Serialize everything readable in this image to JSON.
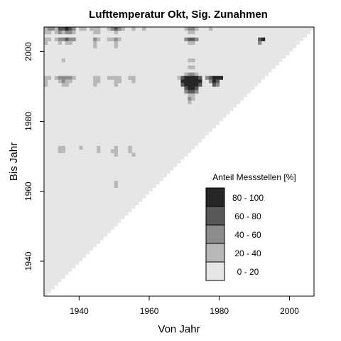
{
  "chart_data": {
    "type": "heatmap",
    "title": "Lufttemperatur Okt, Sig. Zunahmen",
    "xlabel": "Von Jahr",
    "ylabel": "Bis Jahr",
    "xlim": [
      1930,
      2007
    ],
    "ylim": [
      1930,
      2007
    ],
    "x_ticks": [
      1940,
      1960,
      1980,
      2000
    ],
    "y_ticks": [
      1940,
      1960,
      1980,
      2000
    ],
    "grid": false,
    "legend": {
      "title": "Anteil Messstellen [%]",
      "placement": "bottom-right",
      "entries": [
        {
          "label": "80 - 100",
          "color": "#262626"
        },
        {
          "label": "60 -  80",
          "color": "#595959"
        },
        {
          "label": "40 -  60",
          "color": "#8c8c8c"
        },
        {
          "label": "20 -  40",
          "color": "#b8b8b8"
        },
        {
          "label": "0 -  20",
          "color": "#e6e6e6"
        }
      ]
    },
    "background_color": "#e6e6e6",
    "cells": [
      {
        "x": 1930,
        "y": 2006,
        "v": 30
      },
      {
        "x": 1931,
        "y": 2006,
        "v": 50
      },
      {
        "x": 1932,
        "y": 2006,
        "v": 50
      },
      {
        "x": 1933,
        "y": 2006,
        "v": 30
      },
      {
        "x": 1934,
        "y": 2006,
        "v": 70
      },
      {
        "x": 1935,
        "y": 2006,
        "v": 70
      },
      {
        "x": 1936,
        "y": 2006,
        "v": 90
      },
      {
        "x": 1937,
        "y": 2006,
        "v": 70
      },
      {
        "x": 1938,
        "y": 2006,
        "v": 50
      },
      {
        "x": 1940,
        "y": 2006,
        "v": 30
      },
      {
        "x": 1941,
        "y": 2006,
        "v": 30
      },
      {
        "x": 1943,
        "y": 2006,
        "v": 30
      },
      {
        "x": 1944,
        "y": 2006,
        "v": 30
      },
      {
        "x": 1945,
        "y": 2006,
        "v": 30
      },
      {
        "x": 1948,
        "y": 2006,
        "v": 30
      },
      {
        "x": 1949,
        "y": 2006,
        "v": 50
      },
      {
        "x": 1950,
        "y": 2006,
        "v": 70
      },
      {
        "x": 1951,
        "y": 2006,
        "v": 50
      },
      {
        "x": 1952,
        "y": 2006,
        "v": 30
      },
      {
        "x": 1955,
        "y": 2006,
        "v": 30
      },
      {
        "x": 1958,
        "y": 2006,
        "v": 30
      },
      {
        "x": 1970,
        "y": 2006,
        "v": 30
      },
      {
        "x": 1971,
        "y": 2006,
        "v": 50
      },
      {
        "x": 1972,
        "y": 2006,
        "v": 50
      },
      {
        "x": 1973,
        "y": 2006,
        "v": 30
      },
      {
        "x": 1977,
        "y": 2006,
        "v": 30
      },
      {
        "x": 1930,
        "y": 2005,
        "v": 30
      },
      {
        "x": 1931,
        "y": 2005,
        "v": 30
      },
      {
        "x": 1933,
        "y": 2005,
        "v": 30
      },
      {
        "x": 1934,
        "y": 2005,
        "v": 50
      },
      {
        "x": 1935,
        "y": 2005,
        "v": 30
      },
      {
        "x": 1936,
        "y": 2005,
        "v": 50
      },
      {
        "x": 1937,
        "y": 2005,
        "v": 50
      },
      {
        "x": 1938,
        "y": 2005,
        "v": 30
      },
      {
        "x": 1944,
        "y": 2005,
        "v": 30
      },
      {
        "x": 1945,
        "y": 2005,
        "v": 30
      },
      {
        "x": 1950,
        "y": 2005,
        "v": 30
      },
      {
        "x": 1971,
        "y": 2005,
        "v": 30
      },
      {
        "x": 1972,
        "y": 2005,
        "v": 30
      },
      {
        "x": 1930,
        "y": 2003,
        "v": 30
      },
      {
        "x": 1931,
        "y": 2003,
        "v": 30
      },
      {
        "x": 1933,
        "y": 2003,
        "v": 30
      },
      {
        "x": 1934,
        "y": 2003,
        "v": 50
      },
      {
        "x": 1935,
        "y": 2003,
        "v": 50
      },
      {
        "x": 1936,
        "y": 2003,
        "v": 70
      },
      {
        "x": 1937,
        "y": 2003,
        "v": 50
      },
      {
        "x": 1938,
        "y": 2003,
        "v": 50
      },
      {
        "x": 1944,
        "y": 2003,
        "v": 50
      },
      {
        "x": 1945,
        "y": 2003,
        "v": 30
      },
      {
        "x": 1948,
        "y": 2003,
        "v": 30
      },
      {
        "x": 1949,
        "y": 2003,
        "v": 30
      },
      {
        "x": 1950,
        "y": 2003,
        "v": 50
      },
      {
        "x": 1951,
        "y": 2003,
        "v": 30
      },
      {
        "x": 1970,
        "y": 2003,
        "v": 50
      },
      {
        "x": 1971,
        "y": 2003,
        "v": 70
      },
      {
        "x": 1972,
        "y": 2003,
        "v": 70
      },
      {
        "x": 1973,
        "y": 2003,
        "v": 50
      },
      {
        "x": 1991,
        "y": 2003,
        "v": 70
      },
      {
        "x": 1992,
        "y": 2003,
        "v": 90
      },
      {
        "x": 1930,
        "y": 2002,
        "v": 30
      },
      {
        "x": 1934,
        "y": 2002,
        "v": 30
      },
      {
        "x": 1936,
        "y": 2002,
        "v": 30
      },
      {
        "x": 1937,
        "y": 2002,
        "v": 30
      },
      {
        "x": 1944,
        "y": 2002,
        "v": 30
      },
      {
        "x": 1950,
        "y": 2002,
        "v": 30
      },
      {
        "x": 1971,
        "y": 2002,
        "v": 30
      },
      {
        "x": 1972,
        "y": 2002,
        "v": 30
      },
      {
        "x": 1991,
        "y": 2002,
        "v": 50
      },
      {
        "x": 1944,
        "y": 2001,
        "v": 30
      },
      {
        "x": 1950,
        "y": 2001,
        "v": 30
      },
      {
        "x": 1935,
        "y": 1997,
        "v": 30
      },
      {
        "x": 1971,
        "y": 1997,
        "v": 30
      },
      {
        "x": 1972,
        "y": 1997,
        "v": 30
      },
      {
        "x": 1971,
        "y": 1995,
        "v": 30
      },
      {
        "x": 1972,
        "y": 1995,
        "v": 30
      },
      {
        "x": 1970,
        "y": 1993,
        "v": 30
      },
      {
        "x": 1971,
        "y": 1993,
        "v": 50
      },
      {
        "x": 1972,
        "y": 1993,
        "v": 50
      },
      {
        "x": 1973,
        "y": 1993,
        "v": 30
      },
      {
        "x": 1930,
        "y": 1992,
        "v": 30
      },
      {
        "x": 1931,
        "y": 1992,
        "v": 30
      },
      {
        "x": 1933,
        "y": 1992,
        "v": 30
      },
      {
        "x": 1934,
        "y": 1992,
        "v": 50
      },
      {
        "x": 1935,
        "y": 1992,
        "v": 50
      },
      {
        "x": 1936,
        "y": 1992,
        "v": 50
      },
      {
        "x": 1937,
        "y": 1992,
        "v": 50
      },
      {
        "x": 1938,
        "y": 1992,
        "v": 30
      },
      {
        "x": 1944,
        "y": 1992,
        "v": 30
      },
      {
        "x": 1945,
        "y": 1992,
        "v": 30
      },
      {
        "x": 1948,
        "y": 1992,
        "v": 30
      },
      {
        "x": 1949,
        "y": 1992,
        "v": 30
      },
      {
        "x": 1950,
        "y": 1992,
        "v": 30
      },
      {
        "x": 1951,
        "y": 1992,
        "v": 30
      },
      {
        "x": 1954,
        "y": 1992,
        "v": 30
      },
      {
        "x": 1955,
        "y": 1992,
        "v": 30
      },
      {
        "x": 1968,
        "y": 1992,
        "v": 30
      },
      {
        "x": 1969,
        "y": 1992,
        "v": 70
      },
      {
        "x": 1970,
        "y": 1992,
        "v": 90
      },
      {
        "x": 1971,
        "y": 1992,
        "v": 90
      },
      {
        "x": 1972,
        "y": 1992,
        "v": 90
      },
      {
        "x": 1973,
        "y": 1992,
        "v": 90
      },
      {
        "x": 1974,
        "y": 1992,
        "v": 70
      },
      {
        "x": 1976,
        "y": 1992,
        "v": 50
      },
      {
        "x": 1977,
        "y": 1992,
        "v": 70
      },
      {
        "x": 1978,
        "y": 1992,
        "v": 90
      },
      {
        "x": 1979,
        "y": 1992,
        "v": 90
      },
      {
        "x": 1980,
        "y": 1992,
        "v": 90
      },
      {
        "x": 1930,
        "y": 1991,
        "v": 30
      },
      {
        "x": 1934,
        "y": 1991,
        "v": 30
      },
      {
        "x": 1935,
        "y": 1991,
        "v": 50
      },
      {
        "x": 1936,
        "y": 1991,
        "v": 30
      },
      {
        "x": 1937,
        "y": 1991,
        "v": 30
      },
      {
        "x": 1944,
        "y": 1991,
        "v": 30
      },
      {
        "x": 1945,
        "y": 1991,
        "v": 30
      },
      {
        "x": 1950,
        "y": 1991,
        "v": 30
      },
      {
        "x": 1951,
        "y": 1991,
        "v": 30
      },
      {
        "x": 1955,
        "y": 1991,
        "v": 30
      },
      {
        "x": 1969,
        "y": 1991,
        "v": 90
      },
      {
        "x": 1970,
        "y": 1991,
        "v": 90
      },
      {
        "x": 1971,
        "y": 1991,
        "v": 90
      },
      {
        "x": 1972,
        "y": 1991,
        "v": 90
      },
      {
        "x": 1973,
        "y": 1991,
        "v": 90
      },
      {
        "x": 1974,
        "y": 1991,
        "v": 90
      },
      {
        "x": 1977,
        "y": 1991,
        "v": 50
      },
      {
        "x": 1978,
        "y": 1991,
        "v": 90
      },
      {
        "x": 1979,
        "y": 1991,
        "v": 70
      },
      {
        "x": 1930,
        "y": 1990,
        "v": 30
      },
      {
        "x": 1935,
        "y": 1990,
        "v": 30
      },
      {
        "x": 1936,
        "y": 1990,
        "v": 30
      },
      {
        "x": 1944,
        "y": 1990,
        "v": 30
      },
      {
        "x": 1950,
        "y": 1990,
        "v": 30
      },
      {
        "x": 1969,
        "y": 1990,
        "v": 70
      },
      {
        "x": 1970,
        "y": 1990,
        "v": 90
      },
      {
        "x": 1971,
        "y": 1990,
        "v": 90
      },
      {
        "x": 1972,
        "y": 1990,
        "v": 90
      },
      {
        "x": 1973,
        "y": 1990,
        "v": 90
      },
      {
        "x": 1974,
        "y": 1990,
        "v": 70
      },
      {
        "x": 1978,
        "y": 1990,
        "v": 70
      },
      {
        "x": 1979,
        "y": 1990,
        "v": 50
      },
      {
        "x": 1970,
        "y": 1989,
        "v": 70
      },
      {
        "x": 1971,
        "y": 1989,
        "v": 90
      },
      {
        "x": 1972,
        "y": 1989,
        "v": 90
      },
      {
        "x": 1973,
        "y": 1989,
        "v": 70
      },
      {
        "x": 1970,
        "y": 1988,
        "v": 50
      },
      {
        "x": 1971,
        "y": 1988,
        "v": 70
      },
      {
        "x": 1972,
        "y": 1988,
        "v": 70
      },
      {
        "x": 1973,
        "y": 1988,
        "v": 50
      },
      {
        "x": 1971,
        "y": 1987,
        "v": 30
      },
      {
        "x": 1972,
        "y": 1987,
        "v": 30
      },
      {
        "x": 1971,
        "y": 1986,
        "v": 50
      },
      {
        "x": 1972,
        "y": 1986,
        "v": 30
      },
      {
        "x": 1971,
        "y": 1985,
        "v": 30
      },
      {
        "x": 1934,
        "y": 1972,
        "v": 30
      },
      {
        "x": 1935,
        "y": 1972,
        "v": 30
      },
      {
        "x": 1940,
        "y": 1972,
        "v": 30
      },
      {
        "x": 1945,
        "y": 1972,
        "v": 30
      },
      {
        "x": 1950,
        "y": 1972,
        "v": 30
      },
      {
        "x": 1954,
        "y": 1972,
        "v": 30
      },
      {
        "x": 1934,
        "y": 1971,
        "v": 30
      },
      {
        "x": 1935,
        "y": 1971,
        "v": 30
      },
      {
        "x": 1945,
        "y": 1971,
        "v": 30
      },
      {
        "x": 1949,
        "y": 1971,
        "v": 30
      },
      {
        "x": 1950,
        "y": 1971,
        "v": 30
      },
      {
        "x": 1954,
        "y": 1971,
        "v": 30
      },
      {
        "x": 1950,
        "y": 1970,
        "v": 30
      },
      {
        "x": 1955,
        "y": 1970,
        "v": 30
      },
      {
        "x": 1950,
        "y": 1962,
        "v": 30
      },
      {
        "x": 1950,
        "y": 1961,
        "v": 30
      }
    ]
  }
}
